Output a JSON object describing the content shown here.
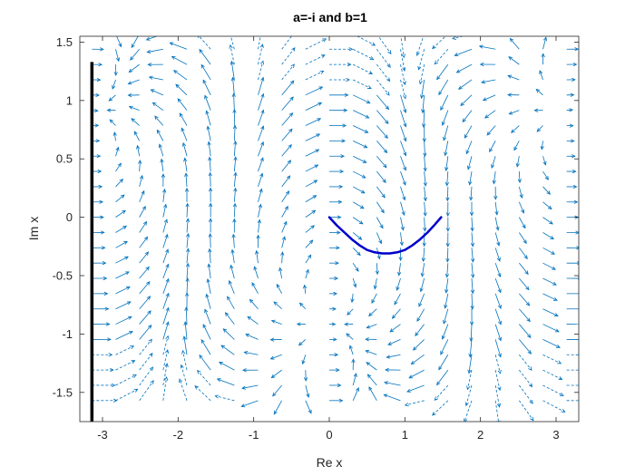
{
  "chart_data": {
    "type": "quiver",
    "title": "a=-i and b=1",
    "xlabel": "Re x",
    "ylabel": "Im x",
    "xlim": [
      -3.3,
      3.3
    ],
    "ylim": [
      -1.75,
      1.55
    ],
    "xticks": [
      -3,
      -2,
      -1,
      0,
      1,
      2,
      3
    ],
    "xtick_labels": [
      "-3",
      "-2",
      "-1",
      "0",
      "1",
      "2",
      "3"
    ],
    "yticks": [
      -1.5,
      -1,
      -0.5,
      0,
      0.5,
      1,
      1.5
    ],
    "ytick_labels": [
      "-1.5",
      "-1",
      "-0.5",
      "0",
      "0.5",
      "1",
      "1.5"
    ],
    "grid": false,
    "colors": {
      "arrows": "#0072BD",
      "trajectory": "#0000CC",
      "vertical_line": "#000000"
    },
    "vector_field": {
      "description_hint": "complex vector field of dx/dt = (a*sin(x)+b)^2 style flow",
      "x_range": [
        -3.14,
        3.14
      ],
      "y_range": [
        -1.57,
        1.57
      ],
      "nx": 21,
      "ny": 25,
      "a": "-i",
      "b": "1"
    },
    "series": [
      {
        "kind": "trajectory",
        "x": [
          0.0,
          0.1,
          0.2,
          0.3,
          0.4,
          0.5,
          0.6,
          0.7,
          0.75,
          0.8,
          0.9,
          1.0,
          1.1,
          1.2,
          1.3,
          1.4,
          1.48
        ],
        "y": [
          0.0,
          -0.07,
          -0.13,
          -0.19,
          -0.24,
          -0.28,
          -0.3,
          -0.31,
          -0.31,
          -0.31,
          -0.3,
          -0.28,
          -0.24,
          -0.19,
          -0.13,
          -0.06,
          0.0
        ]
      },
      {
        "kind": "vertical-line",
        "x": [
          -3.14,
          -3.14
        ],
        "y": [
          -1.75,
          1.33
        ]
      }
    ]
  }
}
